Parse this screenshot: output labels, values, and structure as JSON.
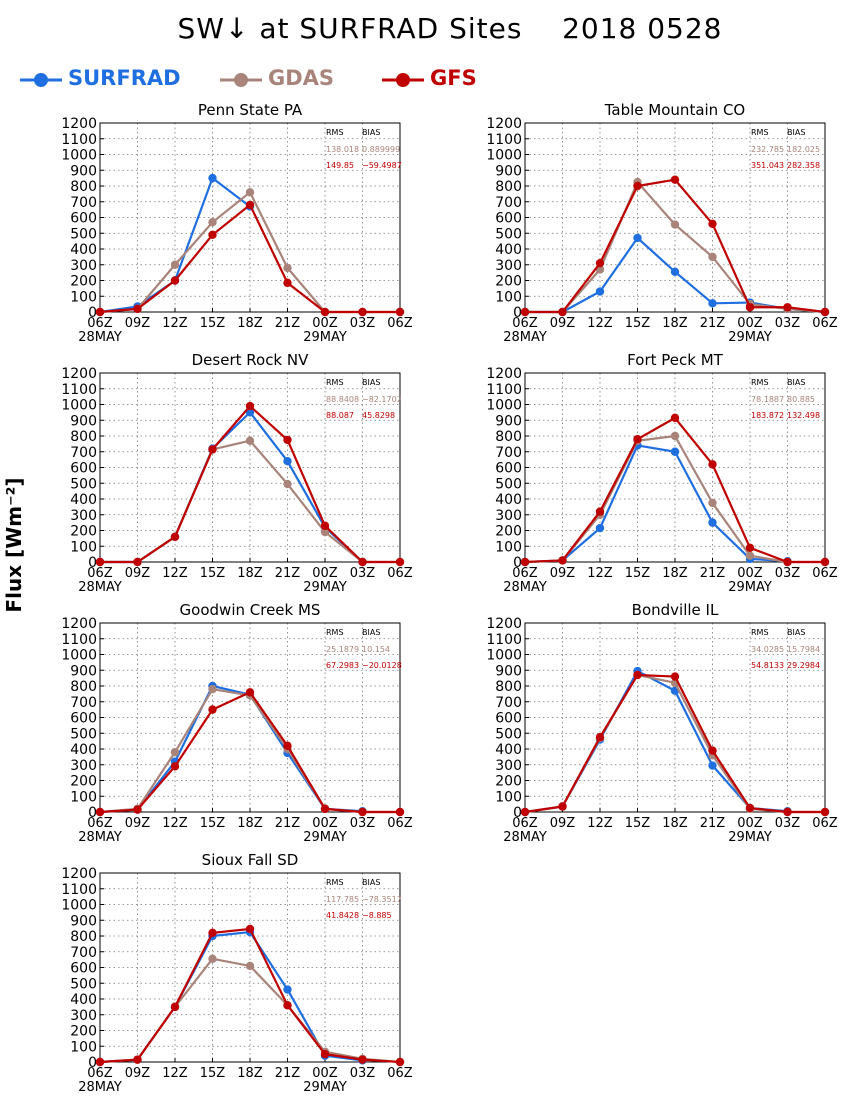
{
  "figure": {
    "title": "SW↓ at SURFRAD Sites    2018 0528",
    "ylabel": "Flux [Wm⁻²]"
  },
  "legend": [
    {
      "name": "SURFRAD",
      "color": "#1f6fe0"
    },
    {
      "name": "GDAS",
      "color": "#a8847a"
    },
    {
      "name": "GFS",
      "color": "#c00000"
    }
  ],
  "stats_headers": {
    "rms": "RMS",
    "bias": "BIAS"
  },
  "chart_data": [
    {
      "type": "line",
      "title": "Penn State PA",
      "categories": [
        "06Z",
        "09Z",
        "12Z",
        "15Z",
        "18Z",
        "21Z",
        "00Z",
        "03Z",
        "06Z"
      ],
      "date_labels": [
        "28MAY",
        "",
        "",
        "",
        "",
        "",
        "29MAY",
        "",
        ""
      ],
      "ylim": [
        0,
        1200
      ],
      "yticks": [
        0,
        100,
        200,
        300,
        400,
        500,
        600,
        700,
        800,
        900,
        1000,
        1100,
        1200
      ],
      "grid": true,
      "series": [
        {
          "name": "SURFRAD",
          "values": [
            0,
            35,
            200,
            850,
            670,
            null,
            null,
            null,
            null
          ]
        },
        {
          "name": "GDAS",
          "values": [
            0,
            20,
            300,
            570,
            760,
            280,
            0,
            0,
            0
          ]
        },
        {
          "name": "GFS",
          "values": [
            0,
            20,
            200,
            490,
            680,
            185,
            0,
            0,
            0
          ]
        }
      ],
      "stats": {
        "gdas": {
          "rms": "138.018",
          "bias": "0.889999"
        },
        "gfs": {
          "rms": "149.85",
          "bias": "−59.4987"
        }
      }
    },
    {
      "type": "line",
      "title": "Table Mountain CO",
      "categories": [
        "06Z",
        "09Z",
        "12Z",
        "15Z",
        "18Z",
        "21Z",
        "00Z",
        "03Z",
        "06Z"
      ],
      "date_labels": [
        "28MAY",
        "",
        "",
        "",
        "",
        "",
        "29MAY",
        "",
        ""
      ],
      "ylim": [
        0,
        1200
      ],
      "yticks": [
        0,
        100,
        200,
        300,
        400,
        500,
        600,
        700,
        800,
        900,
        1000,
        1100,
        1200
      ],
      "grid": true,
      "series": [
        {
          "name": "SURFRAD",
          "values": [
            0,
            0,
            130,
            470,
            255,
            55,
            60,
            20,
            0
          ]
        },
        {
          "name": "GDAS",
          "values": [
            0,
            0,
            270,
            825,
            555,
            350,
            50,
            20,
            0
          ]
        },
        {
          "name": "GFS",
          "values": [
            0,
            0,
            310,
            800,
            840,
            560,
            30,
            30,
            0
          ]
        }
      ],
      "stats": {
        "gdas": {
          "rms": "232.785",
          "bias": "182.025"
        },
        "gfs": {
          "rms": "351.043",
          "bias": "282.358"
        }
      }
    },
    {
      "type": "line",
      "title": "Desert Rock NV",
      "categories": [
        "06Z",
        "09Z",
        "12Z",
        "15Z",
        "18Z",
        "21Z",
        "00Z",
        "03Z",
        "06Z"
      ],
      "date_labels": [
        "28MAY",
        "",
        "",
        "",
        "",
        "",
        "29MAY",
        "",
        ""
      ],
      "ylim": [
        0,
        1200
      ],
      "yticks": [
        0,
        100,
        200,
        300,
        400,
        500,
        600,
        700,
        800,
        900,
        1000,
        1100,
        1200
      ],
      "grid": true,
      "series": [
        {
          "name": "SURFRAD",
          "values": [
            0,
            0,
            160,
            720,
            950,
            640,
            220,
            0,
            null
          ]
        },
        {
          "name": "GDAS",
          "values": [
            0,
            0,
            160,
            715,
            770,
            495,
            190,
            0,
            0
          ]
        },
        {
          "name": "GFS",
          "values": [
            0,
            0,
            160,
            715,
            990,
            775,
            230,
            0,
            0
          ]
        }
      ],
      "stats": {
        "gdas": {
          "rms": "88.8408",
          "bias": "−82.1702"
        },
        "gfs": {
          "rms": "88.087",
          "bias": "45.8298"
        }
      }
    },
    {
      "type": "line",
      "title": "Fort Peck MT",
      "categories": [
        "06Z",
        "09Z",
        "12Z",
        "15Z",
        "18Z",
        "21Z",
        "00Z",
        "03Z",
        "06Z"
      ],
      "date_labels": [
        "28MAY",
        "",
        "",
        "",
        "",
        "",
        "29MAY",
        "",
        ""
      ],
      "ylim": [
        0,
        1200
      ],
      "yticks": [
        0,
        100,
        200,
        300,
        400,
        500,
        600,
        700,
        800,
        900,
        1000,
        1100,
        1200
      ],
      "grid": true,
      "series": [
        {
          "name": "SURFRAD",
          "values": [
            0,
            10,
            215,
            740,
            700,
            250,
            20,
            5,
            null
          ]
        },
        {
          "name": "GDAS",
          "values": [
            0,
            10,
            300,
            770,
            800,
            375,
            40,
            0,
            0
          ]
        },
        {
          "name": "GFS",
          "values": [
            0,
            10,
            320,
            780,
            915,
            620,
            90,
            0,
            0
          ]
        }
      ],
      "stats": {
        "gdas": {
          "rms": "78.1887",
          "bias": "80.885"
        },
        "gfs": {
          "rms": "183.872",
          "bias": "132.498"
        }
      }
    },
    {
      "type": "line",
      "title": "Goodwin Creek MS",
      "categories": [
        "06Z",
        "09Z",
        "12Z",
        "15Z",
        "18Z",
        "21Z",
        "00Z",
        "03Z",
        "06Z"
      ],
      "date_labels": [
        "28MAY",
        "",
        "",
        "",
        "",
        "",
        "29MAY",
        "",
        ""
      ],
      "ylim": [
        0,
        1200
      ],
      "yticks": [
        0,
        100,
        200,
        300,
        400,
        500,
        600,
        700,
        800,
        900,
        1000,
        1100,
        1200
      ],
      "grid": true,
      "series": [
        {
          "name": "SURFRAD",
          "values": [
            0,
            15,
            320,
            800,
            745,
            375,
            20,
            5,
            null
          ]
        },
        {
          "name": "GDAS",
          "values": [
            0,
            20,
            380,
            780,
            740,
            400,
            20,
            0,
            0
          ]
        },
        {
          "name": "GFS",
          "values": [
            0,
            15,
            290,
            650,
            760,
            420,
            20,
            0,
            0
          ]
        }
      ],
      "stats": {
        "gdas": {
          "rms": "25.1879",
          "bias": "10.154"
        },
        "gfs": {
          "rms": "67.2983",
          "bias": "−20.0128"
        }
      }
    },
    {
      "type": "line",
      "title": "Bondville IL",
      "categories": [
        "06Z",
        "09Z",
        "12Z",
        "15Z",
        "18Z",
        "21Z",
        "00Z",
        "03Z",
        "06Z"
      ],
      "date_labels": [
        "28MAY",
        "",
        "",
        "",
        "",
        "",
        "29MAY",
        "",
        ""
      ],
      "ylim": [
        0,
        1200
      ],
      "yticks": [
        0,
        100,
        200,
        300,
        400,
        500,
        600,
        700,
        800,
        900,
        1000,
        1100,
        1200
      ],
      "grid": true,
      "series": [
        {
          "name": "SURFRAD",
          "values": [
            0,
            35,
            460,
            895,
            770,
            295,
            25,
            5,
            null
          ]
        },
        {
          "name": "GDAS",
          "values": [
            0,
            35,
            470,
            870,
            820,
            360,
            20,
            0,
            0
          ]
        },
        {
          "name": "GFS",
          "values": [
            0,
            35,
            475,
            870,
            860,
            390,
            25,
            0,
            0
          ]
        }
      ],
      "stats": {
        "gdas": {
          "rms": "34.0285",
          "bias": "15.7984"
        },
        "gfs": {
          "rms": "54.8133",
          "bias": "29.2984"
        }
      }
    },
    {
      "type": "line",
      "title": "Sioux Fall SD",
      "categories": [
        "06Z",
        "09Z",
        "12Z",
        "15Z",
        "18Z",
        "21Z",
        "00Z",
        "03Z",
        "06Z"
      ],
      "date_labels": [
        "28MAY",
        "",
        "",
        "",
        "",
        "",
        "29MAY",
        "",
        ""
      ],
      "ylim": [
        0,
        1200
      ],
      "yticks": [
        0,
        100,
        200,
        300,
        400,
        500,
        600,
        700,
        800,
        900,
        1000,
        1100,
        1200
      ],
      "grid": true,
      "series": [
        {
          "name": "SURFRAD",
          "values": [
            0,
            15,
            350,
            800,
            825,
            460,
            40,
            10,
            null
          ]
        },
        {
          "name": "GDAS",
          "values": [
            0,
            15,
            350,
            655,
            610,
            360,
            65,
            20,
            0
          ]
        },
        {
          "name": "GFS",
          "values": [
            0,
            15,
            350,
            820,
            845,
            360,
            50,
            15,
            0
          ]
        }
      ],
      "stats": {
        "gdas": {
          "rms": "117.785",
          "bias": "−78.3517"
        },
        "gfs": {
          "rms": "41.8428",
          "bias": "−8.885"
        }
      }
    }
  ]
}
